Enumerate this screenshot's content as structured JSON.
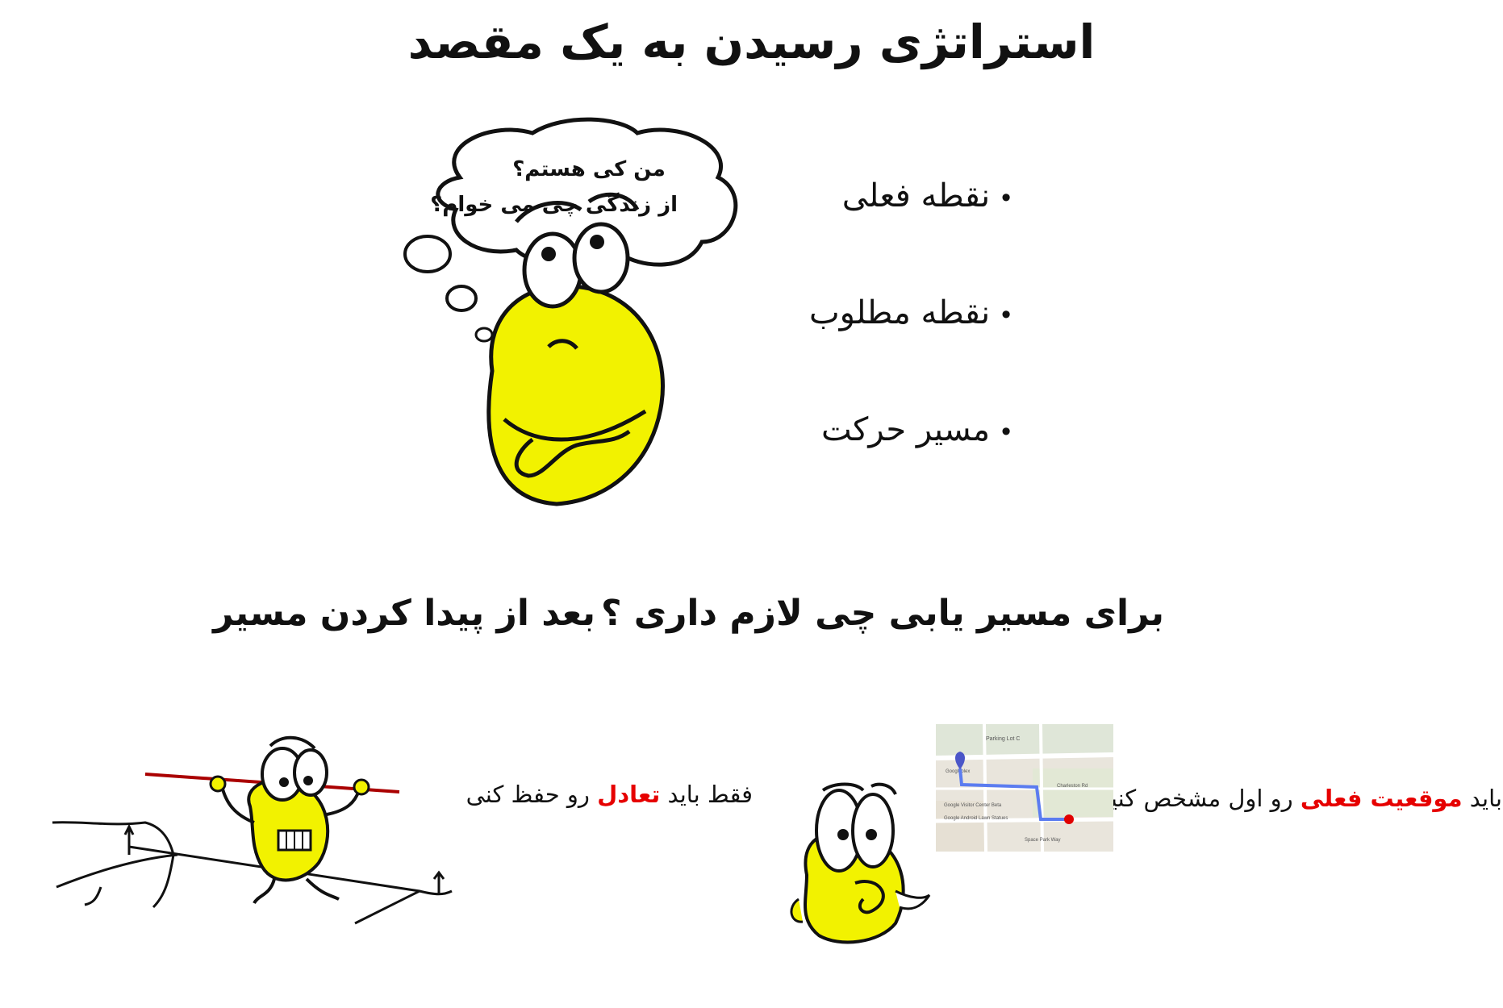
{
  "title": "استراتژی رسیدن به یک مقصد",
  "thought": {
    "line1": "من کی هستم؟",
    "line2": "از زندگی چی می خوام؟"
  },
  "bullets": [
    "نقطه فعلی",
    "نقطه مطلوب",
    "مسیر حرکت"
  ],
  "left_section": {
    "heading": "بعد از پیدا کردن مسیر",
    "caption_prefix": "فقط باید ",
    "caption_highlight": "تعادل",
    "caption_suffix": " رو حفظ کنی"
  },
  "right_section": {
    "heading": "برای مسیر یابی چی لازم داری ؟",
    "caption_prefix": "باید ",
    "caption_highlight": "موقعیت فعلی",
    "caption_suffix": " رو اول مشخص کنید"
  },
  "map": {
    "labels": [
      "Parking Lot C",
      "Google Visitor Center Beta",
      "Google Android Lawn Statues",
      "Charleston Rd",
      "Space Park Way",
      "Googleplex"
    ]
  },
  "colors": {
    "accent_red": "#e60000",
    "character_yellow": "#f2f200",
    "route_blue": "#5b7cf0"
  }
}
